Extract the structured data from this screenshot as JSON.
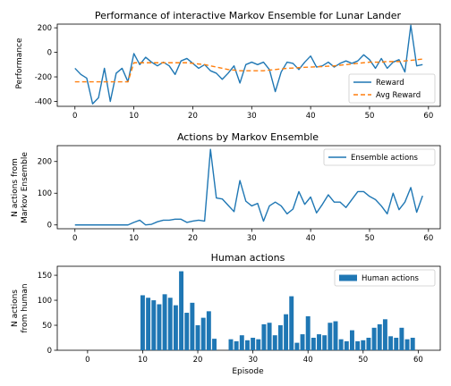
{
  "chart_data": [
    {
      "type": "line",
      "title": "Performance of interactive Markov Ensemble for Lunar Lander",
      "xlabel": "",
      "ylabel": "Performance",
      "xlim": [
        -3,
        62
      ],
      "ylim": [
        -440,
        230
      ],
      "xticks": [
        0,
        10,
        20,
        30,
        40,
        50,
        60
      ],
      "yticks": [
        -400,
        -200,
        0,
        200
      ],
      "grid": false,
      "legend_position": "lower-right",
      "x": [
        0,
        1,
        2,
        3,
        4,
        5,
        6,
        7,
        8,
        9,
        10,
        11,
        12,
        13,
        14,
        15,
        16,
        17,
        18,
        19,
        20,
        21,
        22,
        23,
        24,
        25,
        26,
        27,
        28,
        29,
        30,
        31,
        32,
        33,
        34,
        35,
        36,
        37,
        38,
        39,
        40,
        41,
        42,
        43,
        44,
        45,
        46,
        47,
        48,
        49,
        50,
        51,
        52,
        53,
        54,
        55,
        56,
        57,
        58,
        59
      ],
      "series": [
        {
          "name": "Reward",
          "style": "solid",
          "color": "#1f77b4",
          "values": [
            -130,
            -180,
            -210,
            -420,
            -370,
            -130,
            -400,
            -170,
            -130,
            -240,
            -10,
            -100,
            -40,
            -80,
            -110,
            -80,
            -110,
            -180,
            -70,
            -50,
            -90,
            -130,
            -100,
            -150,
            -170,
            -220,
            -170,
            -110,
            -250,
            -100,
            -80,
            -100,
            -80,
            -140,
            -320,
            -160,
            -80,
            -90,
            -140,
            -80,
            -30,
            -120,
            -110,
            -80,
            -120,
            -90,
            -70,
            -90,
            -70,
            -20,
            -60,
            -130,
            -50,
            -130,
            -80,
            -60,
            -160,
            220,
            -110,
            -100
          ]
        },
        {
          "name": "Avg Reward",
          "style": "dashed",
          "color": "#ff7f0e",
          "values": [
            -240,
            -240,
            -240,
            -240,
            -240,
            -240,
            -240,
            -240,
            -240,
            -240,
            -85,
            -85,
            -85,
            -85,
            -85,
            -85,
            -85,
            -85,
            -85,
            -85,
            -90,
            -95,
            -100,
            -110,
            -120,
            -130,
            -140,
            -145,
            -150,
            -150,
            -150,
            -150,
            -150,
            -145,
            -140,
            -135,
            -130,
            -128,
            -125,
            -122,
            -120,
            -118,
            -116,
            -113,
            -110,
            -105,
            -100,
            -95,
            -90,
            -85,
            -80,
            -80,
            -80,
            -75,
            -75,
            -75,
            -70,
            -65,
            -60,
            -55
          ]
        }
      ]
    },
    {
      "type": "line",
      "title": "Actions by Markov Ensemble",
      "xlabel": "",
      "ylabel_lines": [
        "N actions from",
        "Markov Ensemble"
      ],
      "xlim": [
        -3,
        62
      ],
      "ylim": [
        -12,
        250
      ],
      "xticks": [
        0,
        10,
        20,
        30,
        40,
        50,
        60
      ],
      "yticks": [
        0,
        100,
        200
      ],
      "grid": false,
      "legend_position": "top-right",
      "x": [
        0,
        1,
        2,
        3,
        4,
        5,
        6,
        7,
        8,
        9,
        10,
        11,
        12,
        13,
        14,
        15,
        16,
        17,
        18,
        19,
        20,
        21,
        22,
        23,
        24,
        25,
        26,
        27,
        28,
        29,
        30,
        31,
        32,
        33,
        34,
        35,
        36,
        37,
        38,
        39,
        40,
        41,
        42,
        43,
        44,
        45,
        46,
        47,
        48,
        49,
        50,
        51,
        52,
        53,
        54,
        55,
        56,
        57,
        58,
        59
      ],
      "series": [
        {
          "name": "Ensemble actions",
          "style": "solid",
          "color": "#1f77b4",
          "values": [
            0,
            0,
            0,
            0,
            0,
            0,
            0,
            0,
            0,
            0,
            8,
            15,
            0,
            2,
            10,
            15,
            15,
            18,
            18,
            8,
            12,
            15,
            12,
            238,
            85,
            82,
            62,
            42,
            140,
            75,
            60,
            68,
            12,
            60,
            72,
            60,
            35,
            50,
            105,
            65,
            88,
            38,
            65,
            95,
            72,
            72,
            55,
            80,
            105,
            105,
            90,
            80,
            60,
            35,
            100,
            48,
            72,
            118,
            40,
            92
          ]
        }
      ]
    },
    {
      "type": "bar",
      "title": "Human actions",
      "xlabel": "Episode",
      "ylabel_lines": [
        "N actions",
        "from human"
      ],
      "xlim": [
        -5.5,
        64
      ],
      "ylim": [
        0,
        168
      ],
      "xticks": [
        0,
        10,
        20,
        30,
        40,
        50,
        60
      ],
      "yticks": [
        0,
        50,
        100,
        150
      ],
      "grid": false,
      "legend_position": "top-right",
      "x": [
        0,
        1,
        2,
        3,
        4,
        5,
        6,
        7,
        8,
        9,
        10,
        11,
        12,
        13,
        14,
        15,
        16,
        17,
        18,
        19,
        20,
        21,
        22,
        23,
        24,
        25,
        26,
        27,
        28,
        29,
        30,
        31,
        32,
        33,
        34,
        35,
        36,
        37,
        38,
        39,
        40,
        41,
        42,
        43,
        44,
        45,
        46,
        47,
        48,
        49,
        50,
        51,
        52,
        53,
        54,
        55,
        56,
        57,
        58,
        59
      ],
      "series": [
        {
          "name": "Human actions",
          "color": "#1f77b4",
          "values": [
            0,
            0,
            0,
            0,
            0,
            0,
            0,
            0,
            0,
            0,
            110,
            105,
            100,
            92,
            112,
            105,
            90,
            158,
            75,
            95,
            50,
            65,
            78,
            23,
            0,
            0,
            22,
            18,
            30,
            20,
            25,
            22,
            52,
            55,
            30,
            50,
            72,
            108,
            15,
            32,
            68,
            25,
            32,
            30,
            55,
            58,
            22,
            18,
            40,
            18,
            20,
            25,
            45,
            52,
            62,
            28,
            25,
            45,
            22,
            25
          ]
        }
      ]
    }
  ]
}
